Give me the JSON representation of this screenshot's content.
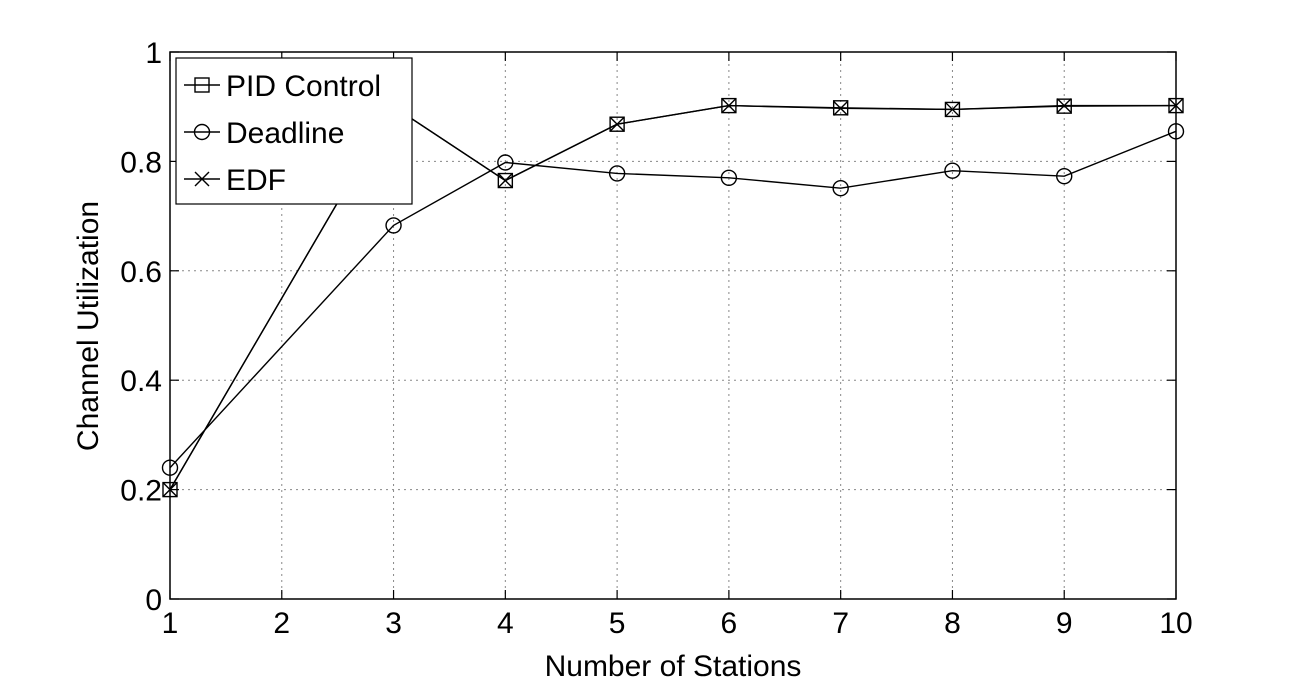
{
  "chart_data": {
    "type": "line",
    "title": "",
    "xlabel": "Number of Stations",
    "ylabel": "Channel Utilization",
    "xlim": [
      1,
      10
    ],
    "ylim": [
      0,
      1
    ],
    "xticks": [
      "1",
      "2",
      "3",
      "4",
      "5",
      "6",
      "7",
      "8",
      "9",
      "10"
    ],
    "yticks": [
      "0",
      "0.2",
      "0.4",
      "0.6",
      "0.8",
      "1"
    ],
    "grid": true,
    "legend_position": "top-left",
    "colors": {
      "line": "#000000",
      "grid": "#888888",
      "background": "#ffffff"
    },
    "series": [
      {
        "name": "PID Control",
        "marker": "square",
        "x": [
          1,
          3,
          4,
          5,
          6,
          7,
          8,
          9,
          10
        ],
        "y": [
          0.2,
          0.9,
          0.765,
          0.868,
          0.902,
          0.898,
          0.895,
          0.901,
          0.902
        ]
      },
      {
        "name": "Deadline",
        "marker": "circle",
        "x": [
          1,
          3,
          4,
          5,
          6,
          7,
          8,
          9,
          10
        ],
        "y": [
          0.24,
          0.683,
          0.798,
          0.778,
          0.77,
          0.751,
          0.783,
          0.773,
          0.855
        ]
      },
      {
        "name": "EDF",
        "marker": "x",
        "x": [
          1,
          3,
          4,
          5,
          6,
          7,
          8,
          9,
          10
        ],
        "y": [
          0.2,
          0.9,
          0.765,
          0.868,
          0.902,
          0.897,
          0.895,
          0.902,
          0.902
        ]
      }
    ]
  }
}
